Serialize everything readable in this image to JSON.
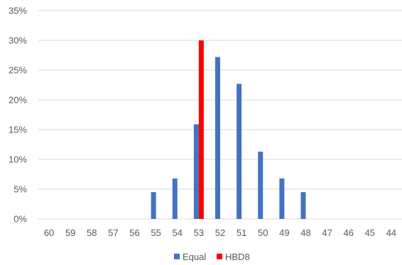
{
  "chart_data": {
    "type": "bar",
    "categories": [
      "60",
      "59",
      "58",
      "57",
      "56",
      "55",
      "54",
      "53",
      "52",
      "51",
      "50",
      "49",
      "48",
      "47",
      "46",
      "45",
      "44"
    ],
    "series": [
      {
        "name": "Equal",
        "color": "#4472C4",
        "values": [
          0,
          0,
          0,
          0,
          0,
          4.5,
          6.8,
          15.9,
          27.2,
          22.7,
          11.3,
          6.8,
          4.5,
          0,
          0,
          0,
          0
        ]
      },
      {
        "name": "HBD8",
        "color": "#FF0000",
        "values": [
          0,
          0,
          0,
          0,
          0,
          0,
          0,
          30,
          0,
          0,
          0,
          0,
          0,
          0,
          0,
          0,
          0
        ]
      }
    ],
    "ylim": [
      0,
      35
    ],
    "yticks": [
      "0%",
      "5%",
      "10%",
      "15%",
      "20%",
      "25%",
      "30%",
      "35%"
    ],
    "ytick_values": [
      0,
      5,
      10,
      15,
      20,
      25,
      30,
      35
    ],
    "grid": true,
    "legend_position": "bottom"
  }
}
